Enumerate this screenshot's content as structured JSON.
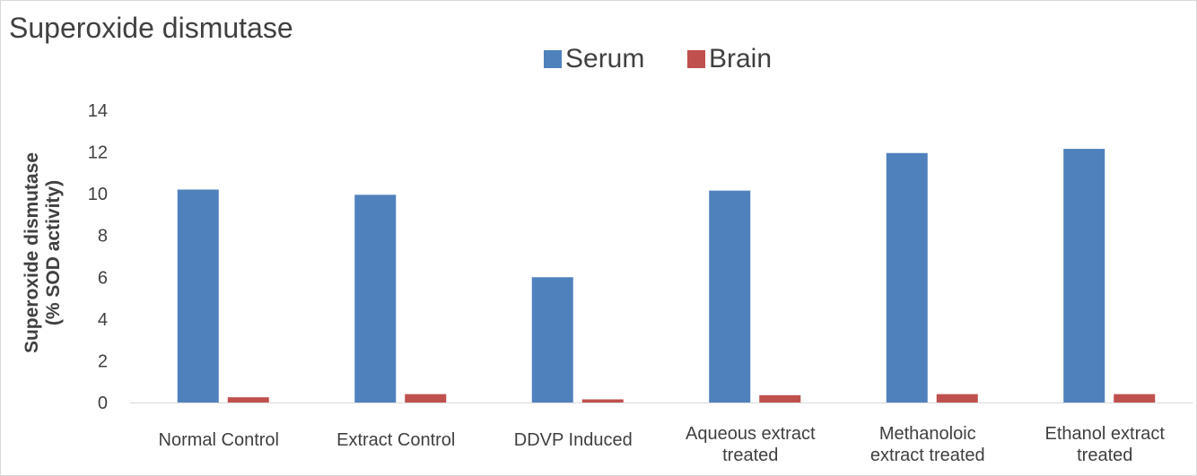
{
  "chart_data": {
    "type": "bar",
    "title": "Superoxide dismutase",
    "ylabel_lines": [
      "Superoxide dismutase",
      "(% SOD activity)"
    ],
    "xlabel": "",
    "ylim": [
      0,
      14
    ],
    "yticks": [
      0,
      2,
      4,
      6,
      8,
      10,
      12,
      14
    ],
    "grid": false,
    "legend_position": "top-center",
    "categories": [
      [
        "Normal Control"
      ],
      [
        "Extract Control"
      ],
      [
        "DDVP Induced"
      ],
      [
        "Aqueous extract",
        "treated"
      ],
      [
        "Methanoloic",
        "extract treated"
      ],
      [
        "Ethanol extract",
        "treated"
      ]
    ],
    "series": [
      {
        "name": "Serum",
        "color": "#4F81BD",
        "values": [
          10.2,
          9.95,
          6.0,
          10.15,
          11.95,
          12.15
        ]
      },
      {
        "name": "Brain",
        "color": "#C0504D",
        "values": [
          0.25,
          0.4,
          0.15,
          0.35,
          0.4,
          0.4
        ]
      }
    ]
  }
}
